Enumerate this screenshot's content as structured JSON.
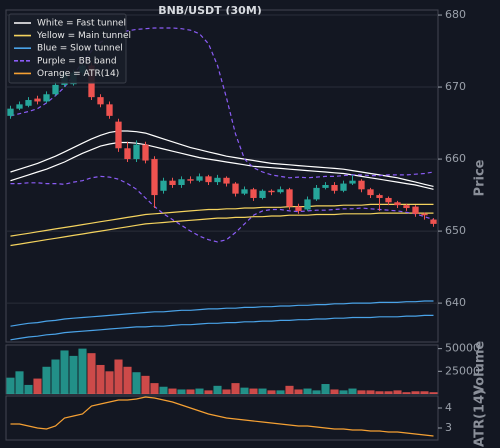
{
  "chart_data": [
    {
      "type": "candlestick",
      "title": "BNB/USDT (30M)",
      "ylabel": "Price",
      "open": [
        666.0,
        667.0,
        667.4,
        668.4,
        668.0,
        669.0,
        670.3,
        670.4,
        672.0,
        673.0,
        668.6,
        667.6,
        665.2,
        661.5,
        660.0,
        662.0,
        660.0,
        655.6,
        657.0,
        656.4,
        657.2,
        657.0,
        657.6,
        656.8,
        657.4,
        656.6,
        655.2,
        655.8,
        654.6,
        655.6,
        655.4,
        655.8,
        653.4,
        653.0,
        654.4,
        656.0,
        656.4,
        655.6,
        656.6,
        657.0,
        655.8,
        655.0,
        654.6,
        654.0,
        653.6,
        653.4,
        652.4,
        651.6
      ],
      "high": [
        667.4,
        668.0,
        668.6,
        668.8,
        669.4,
        670.8,
        672.2,
        672.4,
        673.4,
        673.4,
        669.0,
        668.0,
        665.6,
        662.4,
        662.6,
        662.4,
        660.4,
        657.4,
        657.4,
        657.6,
        657.6,
        658.0,
        657.8,
        657.8,
        657.6,
        656.8,
        656.2,
        656.0,
        655.8,
        655.8,
        656.2,
        656.0,
        653.8,
        654.8,
        656.4,
        656.8,
        656.8,
        657.0,
        657.8,
        657.2,
        656.0,
        655.2,
        654.8,
        654.2,
        653.8,
        653.6,
        652.6,
        651.8
      ],
      "low": [
        665.6,
        666.8,
        667.2,
        667.6,
        667.8,
        668.8,
        670.0,
        670.2,
        671.6,
        668.2,
        667.2,
        665.6,
        661.0,
        659.6,
        659.6,
        659.4,
        653.2,
        655.2,
        656.0,
        656.0,
        656.6,
        656.8,
        656.4,
        656.4,
        656.2,
        654.8,
        655.0,
        654.2,
        654.4,
        655.0,
        655.2,
        653.0,
        652.4,
        652.8,
        654.2,
        655.8,
        655.2,
        655.4,
        656.4,
        655.4,
        654.6,
        652.8,
        653.6,
        653.2,
        652.8,
        652.0,
        651.6,
        650.6
      ],
      "close": [
        667.0,
        667.6,
        668.2,
        668.0,
        669.0,
        670.3,
        671.8,
        672.0,
        673.0,
        668.6,
        667.6,
        666.0,
        661.5,
        660.0,
        662.0,
        659.8,
        655.0,
        657.0,
        656.4,
        657.2,
        657.0,
        657.6,
        656.8,
        657.4,
        656.6,
        655.2,
        655.8,
        654.6,
        655.6,
        655.4,
        655.8,
        653.4,
        652.8,
        654.4,
        656.0,
        656.4,
        655.6,
        656.6,
        657.0,
        655.8,
        655.0,
        654.6,
        654.0,
        653.6,
        653.2,
        652.4,
        652.2,
        651.0
      ],
      "up_color": "#26a69a",
      "down_color": "#ef5350",
      "ylim": [
        634.6,
        680.7
      ],
      "yticks": [
        640,
        650,
        660,
        670,
        680
      ],
      "grid": true,
      "legend_loc": "upper left",
      "overlays": [
        {
          "name": "White = Fast tunnel",
          "color": "#ffffff",
          "style": "solid",
          "lines": [
            [
              658.2,
              658.6,
              659.0,
              659.4,
              659.9,
              660.4,
              661.0,
              661.6,
              662.2,
              662.8,
              663.3,
              663.7,
              663.9,
              663.9,
              663.8,
              663.6,
              663.2,
              662.8,
              662.4,
              662.0,
              661.6,
              661.3,
              661.0,
              660.7,
              660.4,
              660.2,
              660.0,
              659.8,
              659.6,
              659.4,
              659.3,
              659.2,
              659.1,
              659.0,
              658.9,
              658.8,
              658.7,
              658.6,
              658.4,
              658.2,
              658.0,
              657.8,
              657.6,
              657.4,
              657.1,
              656.8,
              656.5,
              656.2
            ],
            [
              657.0,
              657.4,
              657.8,
              658.2,
              658.6,
              659.1,
              659.6,
              660.2,
              660.8,
              661.3,
              661.8,
              662.1,
              662.3,
              662.3,
              662.2,
              662.0,
              661.7,
              661.4,
              661.1,
              660.8,
              660.5,
              660.2,
              660.0,
              659.8,
              659.6,
              659.4,
              659.2,
              659.0,
              658.9,
              658.8,
              658.7,
              658.6,
              658.5,
              658.4,
              658.3,
              658.2,
              658.1,
              658.0,
              657.8,
              657.6,
              657.4,
              657.2,
              657.0,
              656.8,
              656.6,
              656.4,
              656.1,
              655.8
            ]
          ]
        },
        {
          "name": "Yellow = Main tunnel",
          "color": "#f4d35e",
          "style": "solid",
          "lines": [
            [
              649.3,
              649.5,
              649.7,
              649.9,
              650.1,
              650.3,
              650.5,
              650.7,
              650.9,
              651.1,
              651.3,
              651.5,
              651.7,
              651.9,
              652.1,
              652.3,
              652.4,
              652.5,
              652.6,
              652.7,
              652.8,
              652.9,
              653.0,
              653.0,
              653.1,
              653.1,
              653.2,
              653.2,
              653.3,
              653.3,
              653.3,
              653.4,
              653.4,
              653.4,
              653.5,
              653.5,
              653.5,
              653.6,
              653.6,
              653.6,
              653.7,
              653.7,
              653.7,
              653.7,
              653.7,
              653.7,
              653.7,
              653.7
            ],
            [
              648.0,
              648.2,
              648.4,
              648.6,
              648.8,
              649.0,
              649.2,
              649.4,
              649.6,
              649.8,
              650.0,
              650.2,
              650.4,
              650.6,
              650.8,
              651.0,
              651.1,
              651.2,
              651.3,
              651.4,
              651.5,
              651.6,
              651.7,
              651.8,
              651.8,
              651.9,
              651.9,
              652.0,
              652.0,
              652.1,
              652.1,
              652.2,
              652.2,
              652.2,
              652.3,
              652.3,
              652.3,
              652.4,
              652.4,
              652.4,
              652.4,
              652.5,
              652.5,
              652.5,
              652.5,
              652.5,
              652.5,
              652.5
            ]
          ]
        },
        {
          "name": "Blue = Slow tunnel",
          "color": "#4aa3e8",
          "style": "solid",
          "lines": [
            [
              636.8,
              637.0,
              637.2,
              637.3,
              637.5,
              637.6,
              637.8,
              637.9,
              638.0,
              638.1,
              638.2,
              638.3,
              638.4,
              638.5,
              638.6,
              638.7,
              638.8,
              638.8,
              638.9,
              639.0,
              639.0,
              639.1,
              639.2,
              639.2,
              639.3,
              639.3,
              639.4,
              639.4,
              639.5,
              639.5,
              639.6,
              639.6,
              639.7,
              639.7,
              639.8,
              639.8,
              639.9,
              639.9,
              640.0,
              640.0,
              640.0,
              640.1,
              640.1,
              640.1,
              640.2,
              640.2,
              640.3,
              640.3
            ],
            [
              634.9,
              635.1,
              635.3,
              635.4,
              635.6,
              635.7,
              635.9,
              636.0,
              636.1,
              636.2,
              636.3,
              636.4,
              636.5,
              636.6,
              636.7,
              636.7,
              636.8,
              636.8,
              636.9,
              637.0,
              637.0,
              637.1,
              637.2,
              637.2,
              637.3,
              637.3,
              637.4,
              637.4,
              637.5,
              637.5,
              637.6,
              637.6,
              637.7,
              637.7,
              637.8,
              637.8,
              637.9,
              637.9,
              638.0,
              638.0,
              638.0,
              638.1,
              638.1,
              638.1,
              638.2,
              638.2,
              638.3,
              638.3
            ]
          ]
        },
        {
          "name": "Purple = BB band",
          "color": "#8b5cf6",
          "style": "dashed",
          "lines": [
            [
              666.0,
              666.3,
              666.6,
              667.0,
              667.8,
              668.8,
              670.0,
              671.6,
              673.5,
              675.0,
              676.2,
              677.0,
              677.5,
              677.8,
              678.0,
              678.1,
              678.2,
              678.2,
              678.2,
              678.1,
              677.9,
              677.4,
              676.0,
              673.0,
              668.5,
              663.5,
              660.0,
              658.8,
              658.2,
              657.8,
              657.6,
              657.4,
              657.5,
              657.4,
              657.5,
              657.6,
              657.6,
              657.7,
              657.8,
              657.8,
              657.7,
              657.7,
              657.8,
              657.8,
              657.8,
              657.9,
              658.0,
              658.2
            ],
            [
              656.6,
              656.6,
              656.7,
              656.7,
              656.6,
              656.6,
              656.5,
              656.8,
              657.0,
              657.4,
              657.6,
              657.5,
              657.2,
              656.6,
              655.8,
              654.6,
              653.4,
              652.4,
              651.6,
              650.8,
              650.0,
              649.3,
              648.8,
              648.5,
              648.8,
              649.8,
              651.0,
              652.2,
              652.8,
              653.0,
              653.0,
              652.8,
              652.7,
              652.8,
              652.9,
              652.9,
              653.0,
              653.1,
              653.1,
              653.2,
              653.1,
              653.0,
              652.9,
              652.8,
              652.6,
              652.4,
              652.0,
              651.6
            ]
          ]
        }
      ]
    },
    {
      "type": "bar",
      "ylabel": "Volume",
      "values": [
        18000,
        25000,
        10000,
        17000,
        30000,
        38000,
        48000,
        42000,
        50000,
        45000,
        32000,
        25000,
        38000,
        30000,
        24000,
        20000,
        12000,
        8000,
        6000,
        5000,
        5000,
        6000,
        4000,
        9000,
        5000,
        12000,
        7000,
        6000,
        6000,
        4000,
        4000,
        9000,
        5000,
        6000,
        4000,
        11000,
        5000,
        4000,
        6000,
        4000,
        4000,
        3000,
        3000,
        4000,
        2000,
        3000,
        3000,
        2000
      ],
      "ylim": [
        0,
        54000
      ],
      "yticks": [
        25000,
        50000
      ]
    },
    {
      "type": "line",
      "ylabel": "ATR(14)",
      "series": [
        {
          "name": "Orange = ATR(14)",
          "color": "#f5a033",
          "values": [
            3.2,
            3.2,
            3.1,
            3.0,
            2.95,
            3.1,
            3.5,
            3.6,
            3.7,
            4.1,
            4.2,
            4.3,
            4.4,
            4.4,
            4.45,
            4.55,
            4.5,
            4.4,
            4.3,
            4.15,
            4.0,
            3.85,
            3.7,
            3.6,
            3.5,
            3.45,
            3.4,
            3.35,
            3.3,
            3.25,
            3.2,
            3.15,
            3.1,
            3.1,
            3.05,
            3.0,
            2.95,
            2.95,
            2.9,
            2.9,
            2.85,
            2.85,
            2.8,
            2.8,
            2.75,
            2.7,
            2.65,
            2.6
          ]
        }
      ],
      "ylim": [
        2.4,
        4.6
      ],
      "yticks": [
        3,
        4
      ]
    }
  ]
}
